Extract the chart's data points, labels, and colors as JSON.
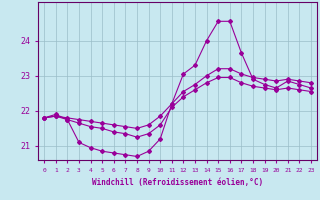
{
  "xlabel": "Windchill (Refroidissement éolien,°C)",
  "hours": [
    0,
    1,
    2,
    3,
    4,
    5,
    6,
    7,
    8,
    9,
    10,
    11,
    12,
    13,
    14,
    15,
    16,
    17,
    18,
    19,
    20,
    21,
    22,
    23
  ],
  "line_jagged": [
    21.8,
    21.9,
    21.75,
    21.1,
    20.95,
    20.85,
    20.8,
    20.75,
    20.7,
    20.85,
    21.2,
    22.2,
    23.05,
    23.3,
    24.0,
    24.55,
    24.55,
    23.65,
    22.9,
    22.75,
    22.65,
    22.85,
    22.75,
    22.65
  ],
  "line_upper": [
    21.8,
    21.85,
    21.8,
    21.75,
    21.7,
    21.65,
    21.6,
    21.55,
    21.5,
    21.6,
    21.85,
    22.2,
    22.55,
    22.75,
    23.0,
    23.2,
    23.2,
    23.05,
    22.95,
    22.9,
    22.85,
    22.9,
    22.85,
    22.8
  ],
  "line_lower": [
    21.8,
    21.85,
    21.75,
    21.65,
    21.55,
    21.5,
    21.4,
    21.35,
    21.25,
    21.35,
    21.6,
    22.1,
    22.4,
    22.6,
    22.8,
    22.95,
    22.95,
    22.8,
    22.7,
    22.65,
    22.6,
    22.65,
    22.6,
    22.55
  ],
  "ylim": [
    20.6,
    25.1
  ],
  "yticks": [
    21,
    22,
    23,
    24
  ],
  "line_color": "#990099",
  "bg_color": "#c8e8f0",
  "grid_color": "#9bbec8",
  "spine_color": "#660066"
}
